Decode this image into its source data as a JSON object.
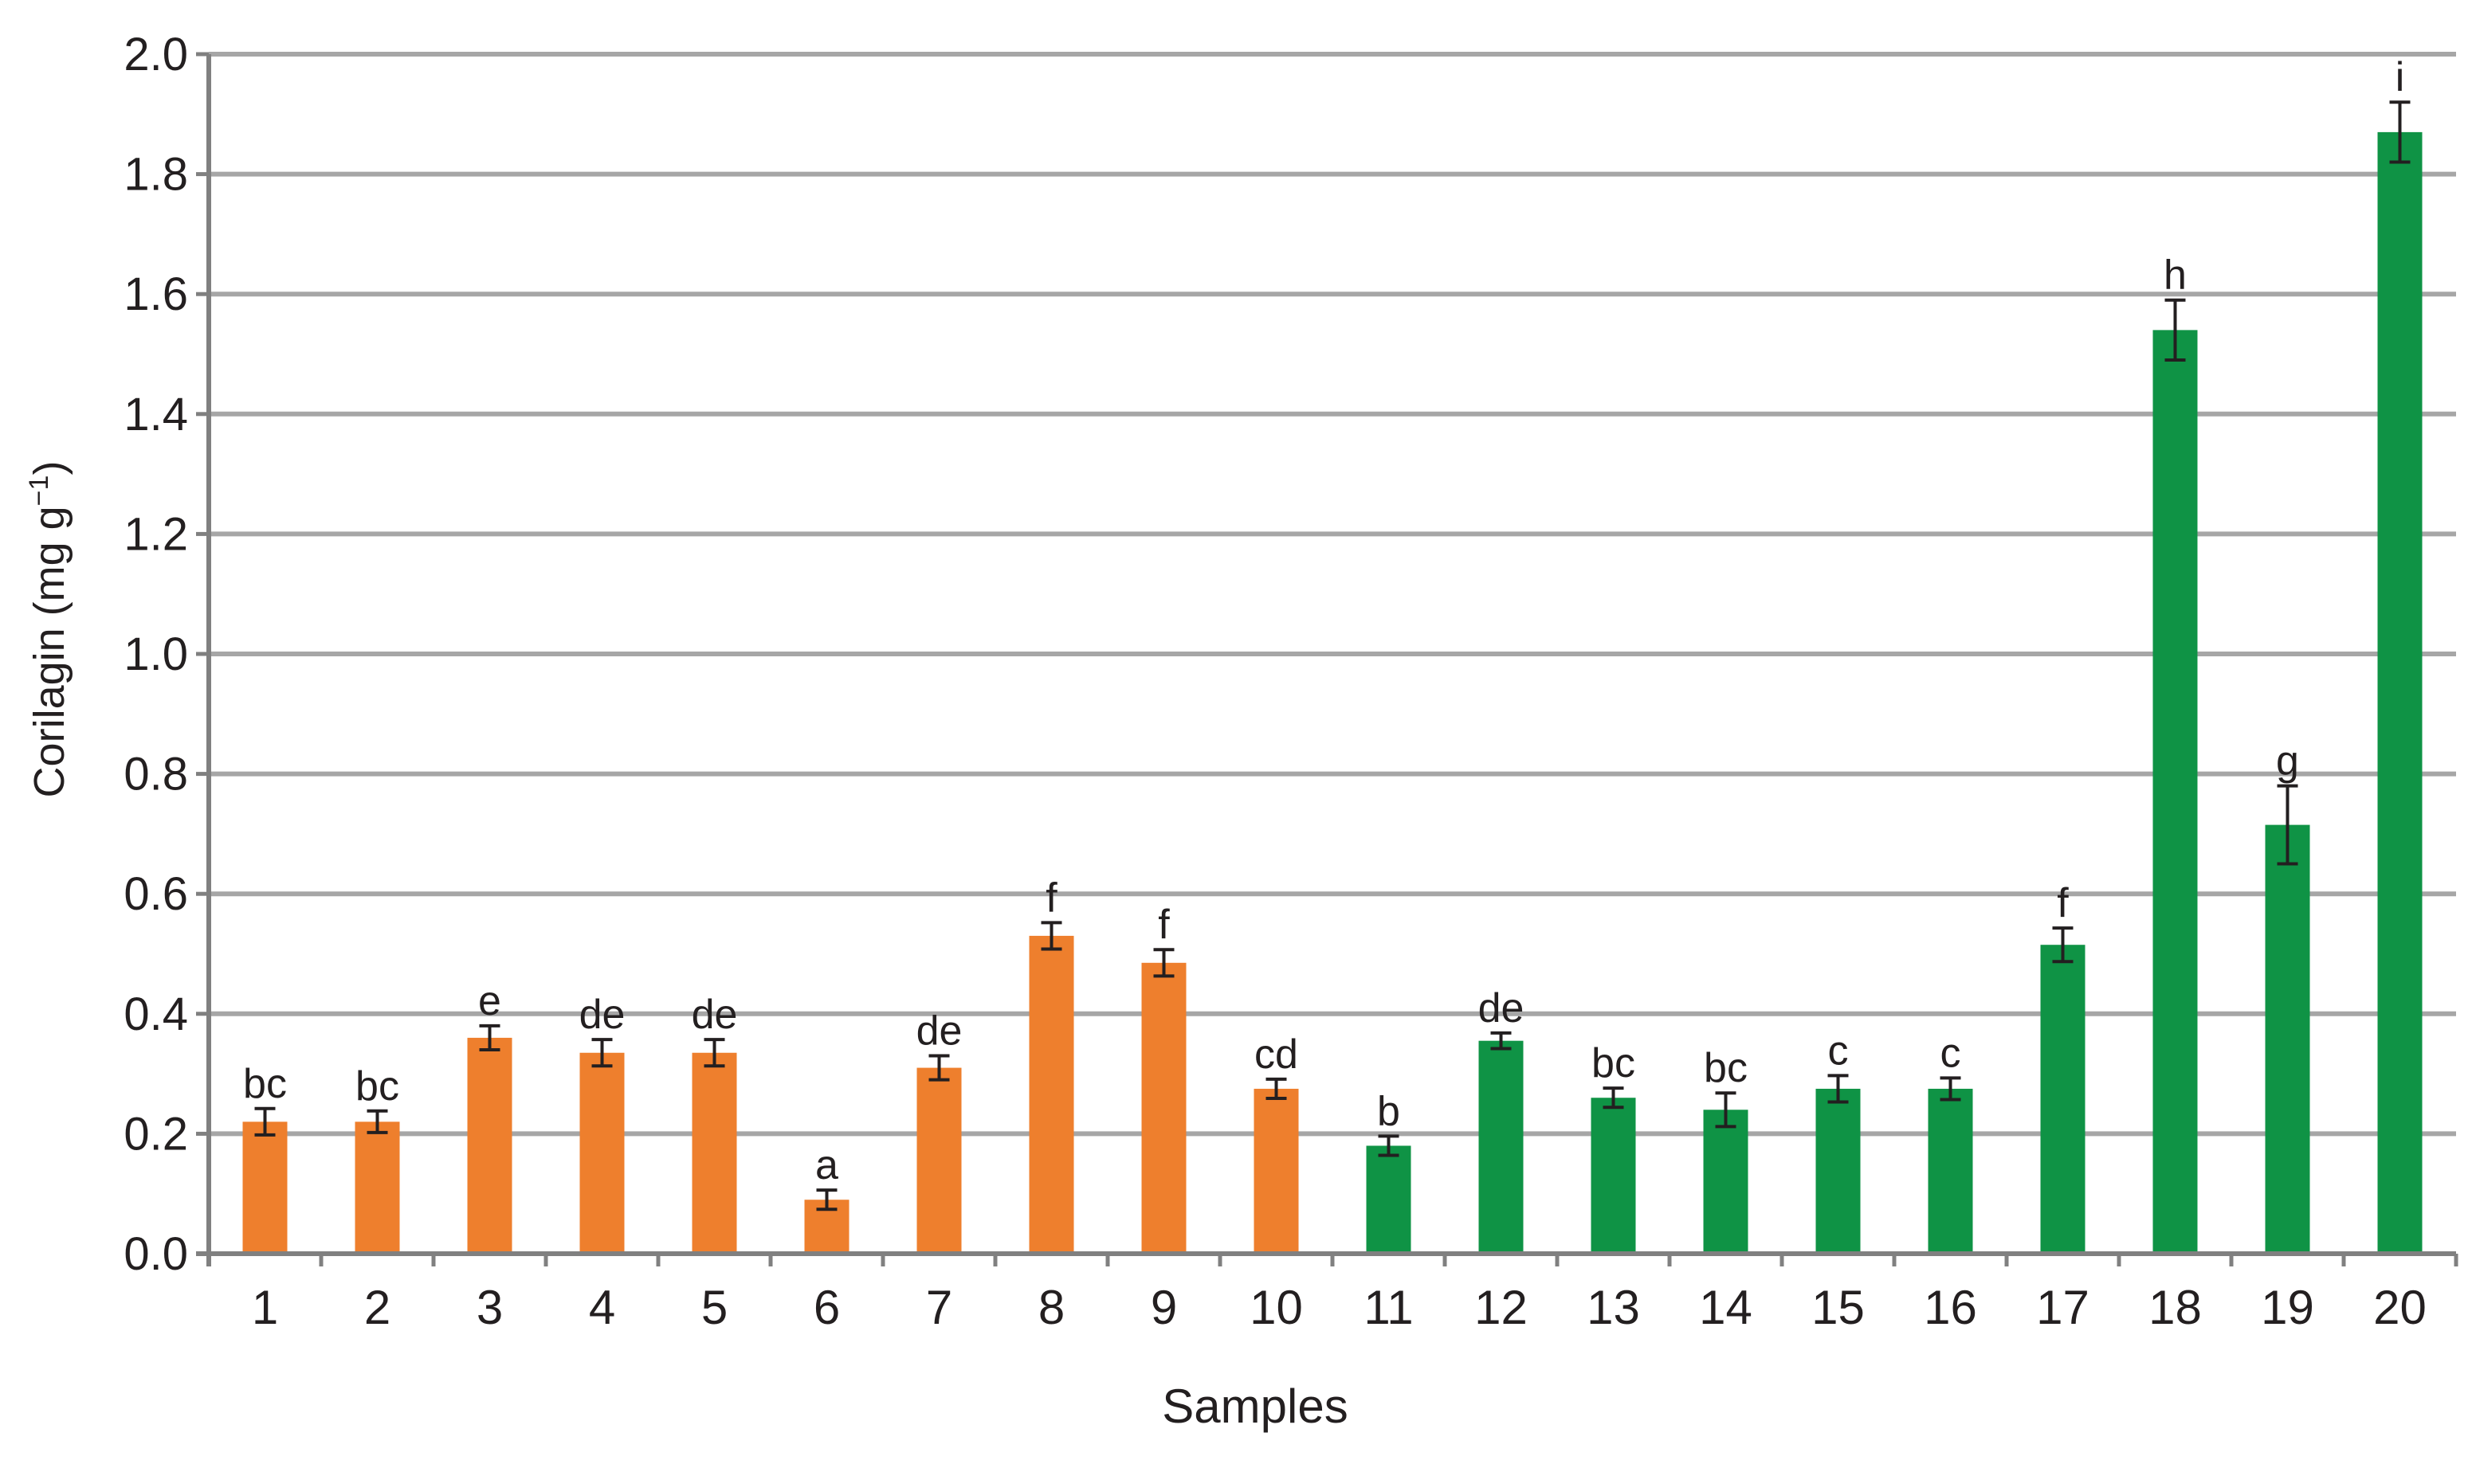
{
  "chart_data": {
    "type": "bar",
    "title": "",
    "xlabel": "Samples",
    "ylabel": "Corilagin (mg g",
    "ylabel_sup": "−1",
    "ylabel_close": ")",
    "ylim": [
      0,
      2.0
    ],
    "yticks": [
      "0.0",
      "0.2",
      "0.4",
      "0.6",
      "0.8",
      "1.0",
      "1.2",
      "1.4",
      "1.6",
      "1.8",
      "2.0"
    ],
    "grid": true,
    "legend": "none",
    "colors": {
      "orange": "#ee7f2d",
      "green": "#0f9345",
      "grid": "#a6a6a6",
      "axis": "#808080",
      "error": "#231f20"
    },
    "categories": [
      "1",
      "2",
      "3",
      "4",
      "5",
      "6",
      "7",
      "8",
      "9",
      "10",
      "11",
      "12",
      "13",
      "14",
      "15",
      "16",
      "17",
      "18",
      "19",
      "20"
    ],
    "values": [
      0.22,
      0.22,
      0.36,
      0.335,
      0.335,
      0.09,
      0.31,
      0.53,
      0.485,
      0.275,
      0.18,
      0.355,
      0.26,
      0.24,
      0.275,
      0.275,
      0.515,
      1.54,
      0.715,
      1.87
    ],
    "errors": [
      0.022,
      0.018,
      0.02,
      0.022,
      0.022,
      0.016,
      0.02,
      0.022,
      0.022,
      0.016,
      0.016,
      0.013,
      0.016,
      0.028,
      0.022,
      0.018,
      0.028,
      0.05,
      0.065,
      0.05
    ],
    "labels": [
      "bc",
      "bc",
      "e",
      "de",
      "de",
      "a",
      "de",
      "f",
      "f",
      "cd",
      "b",
      "de",
      "bc",
      "bc",
      "c",
      "c",
      "f",
      "h",
      "g",
      "i"
    ],
    "bar_colors": [
      "orange",
      "orange",
      "orange",
      "orange",
      "orange",
      "orange",
      "orange",
      "orange",
      "orange",
      "orange",
      "green",
      "green",
      "green",
      "green",
      "green",
      "green",
      "green",
      "green",
      "green",
      "green"
    ]
  }
}
